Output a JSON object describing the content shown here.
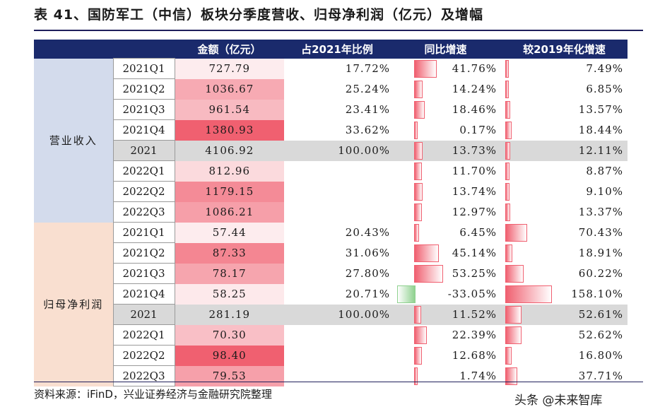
{
  "title": "表 41、国防军工（中信）板块分季度营收、归母净利润（亿元）及增幅",
  "headers": [
    "金额（亿元）",
    "占2021年比例",
    "同比增速",
    "较2019年化增速"
  ],
  "source": "资料来源：iFinD，兴业证券经济与金融研究院整理",
  "watermark": "头条 @未来智库",
  "colors": {
    "header_bg": "#1a2a6c",
    "revenue_group_bg": "#d3dbec",
    "profit_group_bg": "#f9dfd0",
    "bar_positive": "#f06070",
    "bar_negative": "#8fd18f",
    "total_row_bg": "#d9d9d9"
  },
  "groups": [
    {
      "label": "营业收入",
      "rows": [
        {
          "period": "2021Q1",
          "amount": "727.79",
          "amount_level": 0.0,
          "share": "17.72%",
          "yoy": "41.76%",
          "yoy_val": 41.76,
          "vs2019": "7.49%",
          "vs2019_val": 7.49
        },
        {
          "period": "2021Q2",
          "amount": "1036.67",
          "amount_level": 0.47,
          "share": "25.24%",
          "yoy": "14.24%",
          "yoy_val": 14.24,
          "vs2019": "6.85%",
          "vs2019_val": 6.85
        },
        {
          "period": "2021Q3",
          "amount": "961.54",
          "amount_level": 0.36,
          "share": "23.41%",
          "yoy": "18.46%",
          "yoy_val": 18.46,
          "vs2019": "13.57%",
          "vs2019_val": 13.57
        },
        {
          "period": "2021Q4",
          "amount": "1380.93",
          "amount_level": 1.0,
          "share": "33.62%",
          "yoy": "0.17%",
          "yoy_val": 0.17,
          "vs2019": "18.44%",
          "vs2019_val": 18.44
        },
        {
          "period": "2021",
          "amount": "4106.92",
          "amount_level": null,
          "share": "100.00%",
          "yoy": "13.73%",
          "yoy_val": 13.73,
          "vs2019": "12.11%",
          "vs2019_val": 12.11,
          "total": true
        },
        {
          "period": "2022Q1",
          "amount": "812.96",
          "amount_level": 0.13,
          "share": "",
          "yoy": "11.70%",
          "yoy_val": 11.7,
          "vs2019": "8.87%",
          "vs2019_val": 8.87
        },
        {
          "period": "2022Q2",
          "amount": "1179.15",
          "amount_level": 0.69,
          "share": "",
          "yoy": "13.74%",
          "yoy_val": 13.74,
          "vs2019": "9.10%",
          "vs2019_val": 9.1
        },
        {
          "period": "2022Q3",
          "amount": "1086.21",
          "amount_level": 0.55,
          "share": "",
          "yoy": "12.97%",
          "yoy_val": 12.97,
          "vs2019": "13.37%",
          "vs2019_val": 13.37
        }
      ]
    },
    {
      "label": "归母净利润",
      "rows": [
        {
          "period": "2021Q1",
          "amount": "57.44",
          "amount_level": 0.0,
          "share": "20.43%",
          "yoy": "6.45%",
          "yoy_val": 6.45,
          "vs2019": "70.43%",
          "vs2019_val": 70.43
        },
        {
          "period": "2021Q2",
          "amount": "87.33",
          "amount_level": 0.73,
          "share": "31.06%",
          "yoy": "45.14%",
          "yoy_val": 45.14,
          "vs2019": "18.91%",
          "vs2019_val": 18.91
        },
        {
          "period": "2021Q3",
          "amount": "78.17",
          "amount_level": 0.51,
          "share": "27.80%",
          "yoy": "53.25%",
          "yoy_val": 53.25,
          "vs2019": "60.22%",
          "vs2019_val": 60.22
        },
        {
          "period": "2021Q4",
          "amount": "58.25",
          "amount_level": 0.02,
          "share": "20.71%",
          "yoy": "-33.05%",
          "yoy_val": -33.05,
          "vs2019": "158.10%",
          "vs2019_val": 158.1
        },
        {
          "period": "2021",
          "amount": "281.19",
          "amount_level": null,
          "share": "100.00%",
          "yoy": "11.52%",
          "yoy_val": 11.52,
          "vs2019": "52.61%",
          "vs2019_val": 52.61,
          "total": true
        },
        {
          "period": "2022Q1",
          "amount": "70.30",
          "amount_level": 0.32,
          "share": "",
          "yoy": "22.39%",
          "yoy_val": 22.39,
          "vs2019": "52.62%",
          "vs2019_val": 52.62
        },
        {
          "period": "2022Q2",
          "amount": "98.40",
          "amount_level": 1.0,
          "share": "",
          "yoy": "12.68%",
          "yoy_val": 12.68,
          "vs2019": "16.80%",
          "vs2019_val": 16.8
        },
        {
          "period": "2022Q3",
          "amount": "79.53",
          "amount_level": 0.54,
          "share": "",
          "yoy": "1.74%",
          "yoy_val": 1.74,
          "vs2019": "37.71%",
          "vs2019_val": 37.71
        }
      ]
    }
  ]
}
